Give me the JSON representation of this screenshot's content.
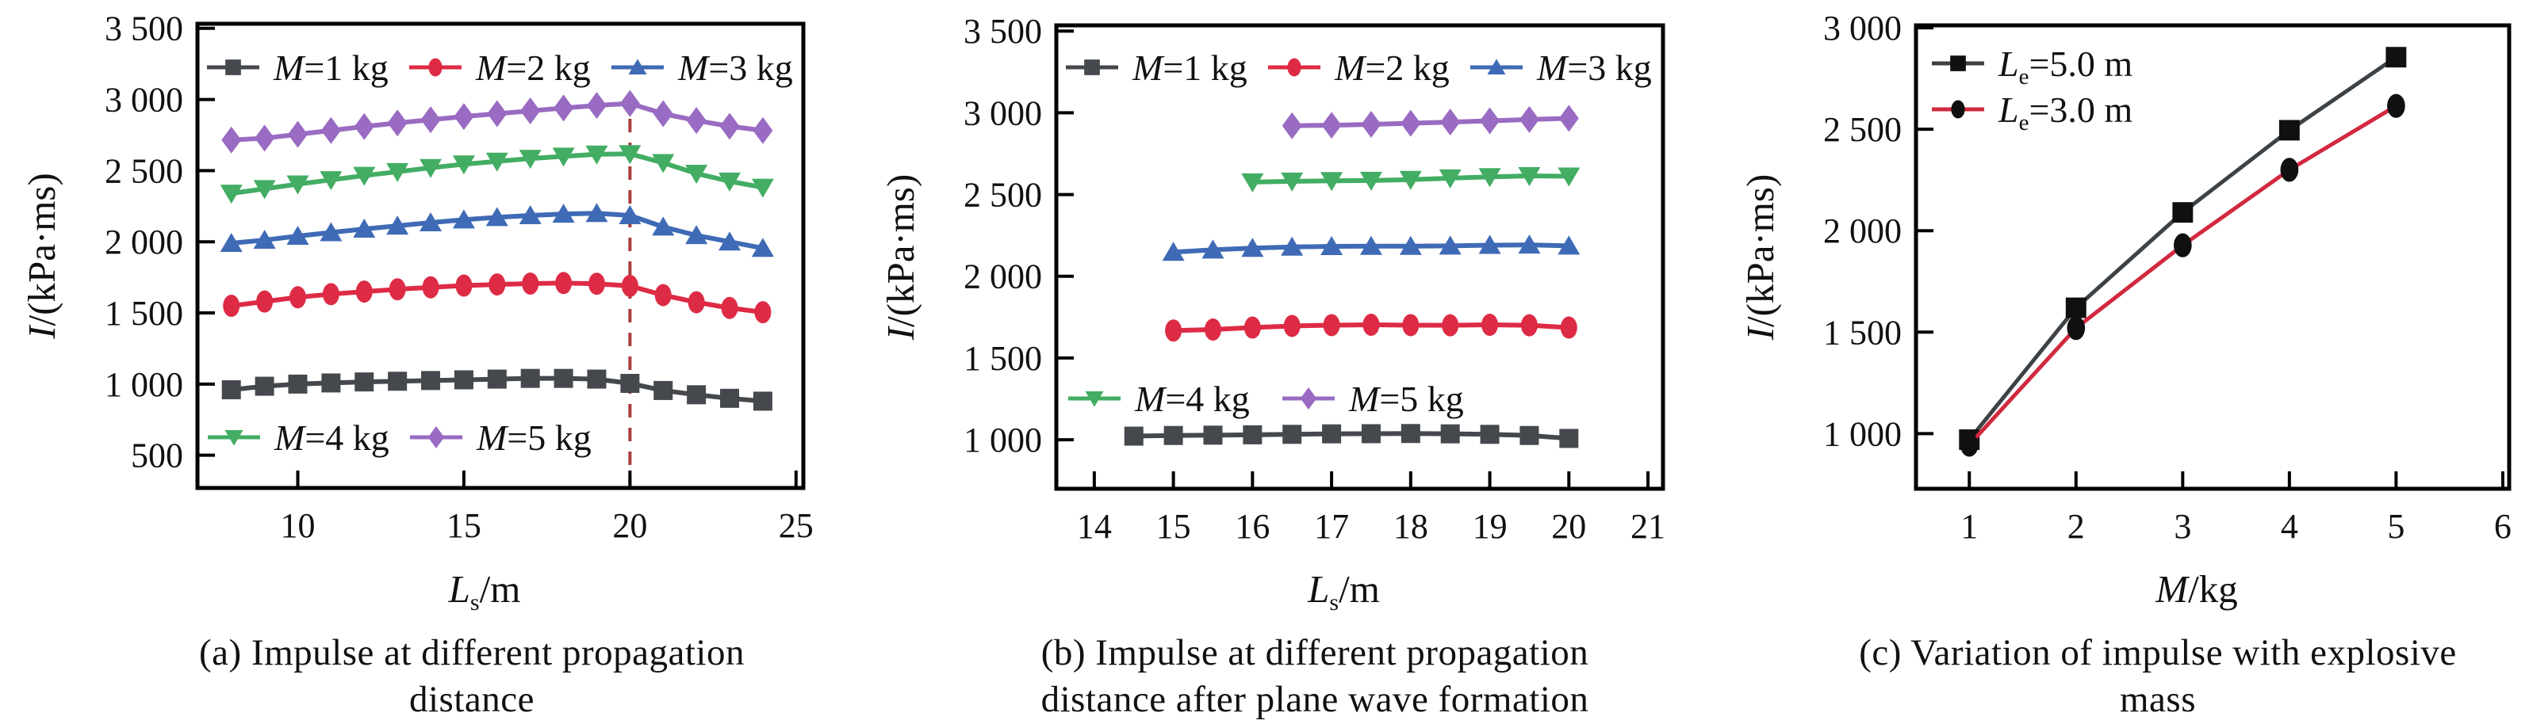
{
  "figure": {
    "background": "#ffffff",
    "text_color": "#111111",
    "unit_note": "impulse I in kPa·ms"
  },
  "chart_data": [
    {
      "id": "a",
      "type": "line",
      "caption_line1": "(a) Impulse at different propagation",
      "caption_line2": "distance",
      "xlabel": "Ls/m",
      "ylabel": "I/(kPa·ms)",
      "xlim": [
        6.98,
        25.22
      ],
      "ylim": [
        270,
        3532
      ],
      "xticks": [
        10,
        15,
        20,
        25
      ],
      "yticks": [
        500,
        1000,
        1500,
        2000,
        2500,
        3000,
        3500
      ],
      "grid": false,
      "legend_position": "rows inside top and above x-axis",
      "refline_x": 20,
      "refline_color": "#a93c3c",
      "series": [
        {
          "name": "M=1 kg",
          "color": "#45494e",
          "marker": "square",
          "x": [
            8,
            9,
            10,
            11,
            12,
            13,
            14,
            15,
            16,
            17,
            18,
            19,
            20,
            21,
            22,
            23,
            24
          ],
          "y": [
            960,
            985,
            1000,
            1008,
            1015,
            1020,
            1025,
            1030,
            1035,
            1040,
            1040,
            1035,
            1005,
            955,
            925,
            900,
            880
          ]
        },
        {
          "name": "M=2 kg",
          "color": "#de2b45",
          "marker": "ellipse",
          "x": [
            8,
            9,
            10,
            11,
            12,
            13,
            14,
            15,
            16,
            17,
            18,
            19,
            20,
            21,
            22,
            23,
            24
          ],
          "y": [
            1550,
            1580,
            1610,
            1632,
            1650,
            1666,
            1680,
            1692,
            1700,
            1706,
            1710,
            1705,
            1690,
            1625,
            1575,
            1535,
            1505
          ]
        },
        {
          "name": "M=3 kg",
          "color": "#3f6ab5",
          "marker": "triangle-up",
          "x": [
            8,
            9,
            10,
            11,
            12,
            13,
            14,
            15,
            16,
            17,
            18,
            19,
            20,
            21,
            22,
            23,
            24
          ],
          "y": [
            1990,
            2012,
            2040,
            2065,
            2090,
            2112,
            2135,
            2155,
            2172,
            2185,
            2195,
            2200,
            2185,
            2105,
            2045,
            2000,
            1955
          ]
        },
        {
          "name": "M=4 kg",
          "color": "#42ad63",
          "marker": "triangle-down",
          "x": [
            8,
            9,
            10,
            11,
            12,
            13,
            14,
            15,
            16,
            17,
            18,
            19,
            20,
            21,
            22,
            23,
            24
          ],
          "y": [
            2340,
            2372,
            2405,
            2435,
            2465,
            2492,
            2520,
            2545,
            2565,
            2585,
            2600,
            2615,
            2618,
            2555,
            2480,
            2425,
            2382
          ]
        },
        {
          "name": "M=5 kg",
          "color": "#996bc2",
          "marker": "diamond",
          "x": [
            8,
            9,
            10,
            11,
            12,
            13,
            14,
            15,
            16,
            17,
            18,
            19,
            20,
            21,
            22,
            23,
            24
          ],
          "y": [
            2715,
            2728,
            2755,
            2782,
            2810,
            2835,
            2858,
            2880,
            2900,
            2920,
            2940,
            2958,
            2972,
            2900,
            2852,
            2812,
            2782
          ]
        }
      ]
    },
    {
      "id": "b",
      "type": "line",
      "caption_line1": "(b) Impulse at different propagation",
      "caption_line2": "distance after plane wave formation",
      "xlabel": "Ls/m",
      "ylabel": "I/(kPa·ms)",
      "xlim": [
        13.52,
        21.19
      ],
      "ylim": [
        700,
        3535
      ],
      "xticks": [
        14,
        15,
        16,
        17,
        18,
        19,
        20,
        21
      ],
      "yticks": [
        1000,
        1500,
        2000,
        2500,
        3000,
        3500
      ],
      "grid": false,
      "legend_position": "rows inside top and mid-left",
      "series": [
        {
          "name": "M=1 kg",
          "color": "#45494e",
          "marker": "square",
          "x": [
            14.5,
            15,
            15.5,
            16,
            16.5,
            17,
            17.5,
            18,
            18.5,
            19,
            19.5,
            20
          ],
          "y": [
            1022,
            1026,
            1028,
            1030,
            1033,
            1036,
            1037,
            1038,
            1036,
            1033,
            1026,
            1008
          ]
        },
        {
          "name": "M=2 kg",
          "color": "#de2b45",
          "marker": "ellipse",
          "x": [
            15,
            15.5,
            16,
            16.5,
            17,
            17.5,
            18,
            18.5,
            19,
            19.5,
            20
          ],
          "y": [
            1668,
            1674,
            1686,
            1696,
            1701,
            1703,
            1701,
            1700,
            1703,
            1700,
            1686
          ]
        },
        {
          "name": "M=3 kg",
          "color": "#3f6ab5",
          "marker": "triangle-up",
          "x": [
            15,
            15.5,
            16,
            16.5,
            17,
            17.5,
            18,
            18.5,
            19,
            19.5,
            20
          ],
          "y": [
            2148,
            2162,
            2172,
            2179,
            2183,
            2184,
            2184,
            2186,
            2190,
            2192,
            2186
          ]
        },
        {
          "name": "M=4 kg",
          "color": "#42ad63",
          "marker": "triangle-down",
          "x": [
            16,
            16.5,
            17,
            17.5,
            18,
            18.5,
            19,
            19.5,
            20
          ],
          "y": [
            2576,
            2581,
            2584,
            2586,
            2591,
            2600,
            2608,
            2614,
            2612
          ]
        },
        {
          "name": "M=5 kg",
          "color": "#996bc2",
          "marker": "diamond",
          "x": [
            16.5,
            17,
            17.5,
            18,
            18.5,
            19,
            19.5,
            20
          ],
          "y": [
            2921,
            2924,
            2929,
            2936,
            2943,
            2951,
            2959,
            2966
          ]
        }
      ]
    },
    {
      "id": "c",
      "type": "line",
      "caption_line1": "(c) Variation of impulse with explosive",
      "caption_line2": "mass",
      "xlabel": "M/kg",
      "ylabel": "I/(kPa·ms)",
      "xlim": [
        0.5,
        6.06
      ],
      "ylim": [
        728,
        3012
      ],
      "xticks": [
        1,
        2,
        3,
        4,
        5,
        6
      ],
      "yticks": [
        1000,
        1500,
        2000,
        2500,
        3000
      ],
      "grid": false,
      "legend_position": "stacked top-left inside",
      "series": [
        {
          "name": "Le=5.0 m",
          "color": "#3d4247",
          "marker": "square",
          "marker_color": "#101010",
          "x": [
            1,
            2,
            3,
            4,
            5
          ],
          "y": [
            970,
            1620,
            2090,
            2495,
            2855
          ]
        },
        {
          "name": "Le=3.0 m",
          "color": "#d2293e",
          "marker": "ellipse",
          "marker_color": "#101010",
          "x": [
            1,
            2,
            3,
            4,
            5
          ],
          "y": [
            945,
            1520,
            1928,
            2300,
            2615
          ]
        }
      ]
    }
  ]
}
